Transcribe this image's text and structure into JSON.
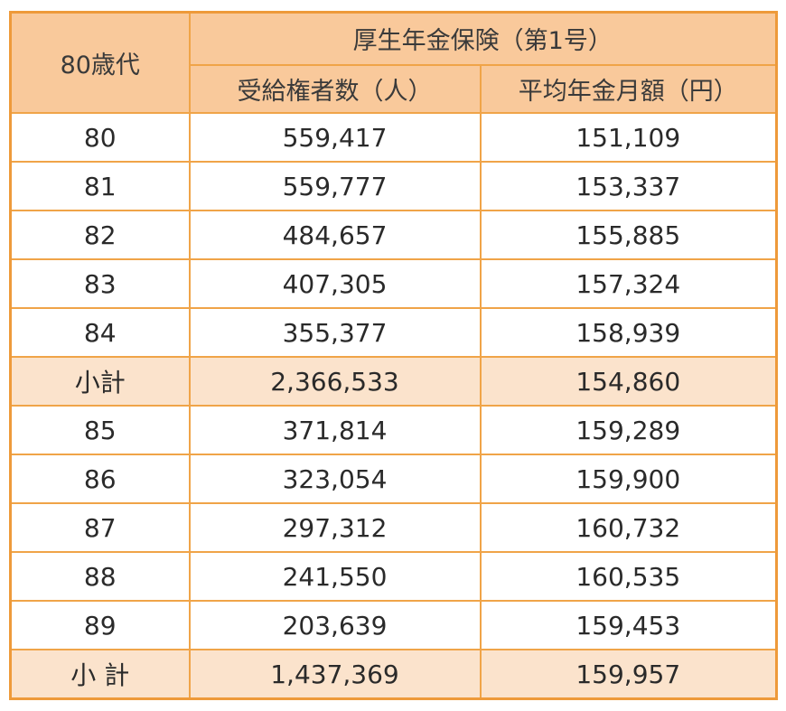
{
  "table": {
    "corner_header": "80歳代",
    "group_header": "厚生年金保険（第1号）",
    "column_headers": [
      "受給権者数（人）",
      "平均年金月額（円）"
    ],
    "rows": [
      {
        "age": "80",
        "recipients": "559,417",
        "avg_monthly": "151,109",
        "subtotal": false
      },
      {
        "age": "81",
        "recipients": "559,777",
        "avg_monthly": "153,337",
        "subtotal": false
      },
      {
        "age": "82",
        "recipients": "484,657",
        "avg_monthly": "155,885",
        "subtotal": false
      },
      {
        "age": "83",
        "recipients": "407,305",
        "avg_monthly": "157,324",
        "subtotal": false
      },
      {
        "age": "84",
        "recipients": "355,377",
        "avg_monthly": "158,939",
        "subtotal": false
      },
      {
        "age": "小計",
        "recipients": "2,366,533",
        "avg_monthly": "154,860",
        "subtotal": true
      },
      {
        "age": "85",
        "recipients": "371,814",
        "avg_monthly": "159,289",
        "subtotal": false
      },
      {
        "age": "86",
        "recipients": "323,054",
        "avg_monthly": "159,900",
        "subtotal": false
      },
      {
        "age": "87",
        "recipients": "297,312",
        "avg_monthly": "160,732",
        "subtotal": false
      },
      {
        "age": "88",
        "recipients": "241,550",
        "avg_monthly": "160,535",
        "subtotal": false
      },
      {
        "age": "89",
        "recipients": "203,639",
        "avg_monthly": "159,453",
        "subtotal": false
      },
      {
        "age": "小 計",
        "recipients": "1,437,369",
        "avg_monthly": "159,957",
        "subtotal": true
      }
    ]
  },
  "colors": {
    "border": "#f0a448",
    "header_bg": "#f9c99b",
    "subtotal_bg": "#fbe3cc",
    "body_bg": "#ffffff"
  }
}
